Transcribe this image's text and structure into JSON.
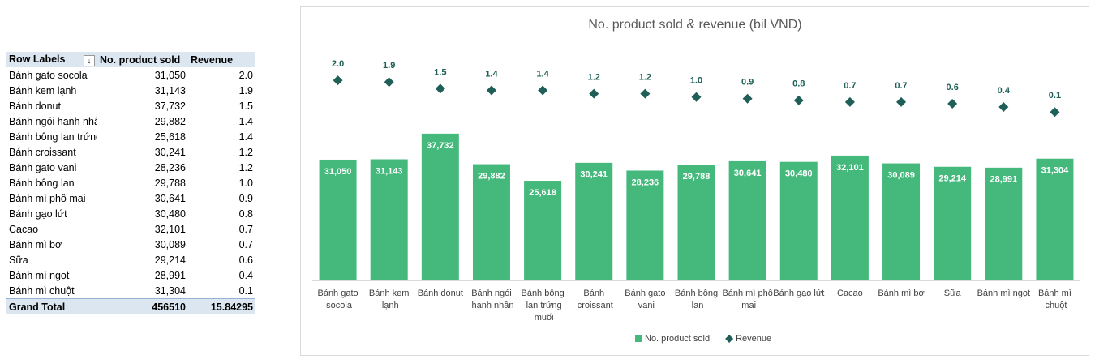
{
  "table": {
    "header": [
      "Row Labels",
      "No. product sold",
      "Revenue"
    ],
    "rows": [
      [
        "Bánh gato socola",
        "31,050",
        "2.0"
      ],
      [
        "Bánh kem lạnh",
        "31,143",
        "1.9"
      ],
      [
        "Bánh donut",
        "37,732",
        "1.5"
      ],
      [
        "Bánh ngói hạnh nhân",
        "29,882",
        "1.4"
      ],
      [
        "Bánh bông lan trứng muối",
        "25,618",
        "1.4"
      ],
      [
        "Bánh croissant",
        "30,241",
        "1.2"
      ],
      [
        "Bánh gato vani",
        "28,236",
        "1.2"
      ],
      [
        "Bánh bông lan",
        "29,788",
        "1.0"
      ],
      [
        "Bánh mì phô mai",
        "30,641",
        "0.9"
      ],
      [
        "Bánh gạo lứt",
        "30,480",
        "0.8"
      ],
      [
        "Cacao",
        "32,101",
        "0.7"
      ],
      [
        "Bánh mì bơ",
        "30,089",
        "0.7"
      ],
      [
        "Sữa",
        "29,214",
        "0.6"
      ],
      [
        "Bánh mì ngọt",
        "28,991",
        "0.4"
      ],
      [
        "Bánh mì chuột",
        "31,304",
        "0.1"
      ]
    ],
    "total": [
      "Grand Total",
      "456510",
      "15.84295"
    ]
  },
  "chart_data": {
    "type": "bar",
    "title": "No. product sold & revenue (bil VND)",
    "categories": [
      "Bánh gato socola",
      "Bánh kem lạnh",
      "Bánh donut",
      "Bánh ngói hạnh nhân",
      "Bánh bông lan trứng muối",
      "Bánh croissant",
      "Bánh gato vani",
      "Bánh bông lan",
      "Bánh mì phô mai",
      "Bánh gạo lứt",
      "Cacao",
      "Bánh mì bơ",
      "Sữa",
      "Bánh mì ngọt",
      "Bánh mì chuột"
    ],
    "series": [
      {
        "name": "No. product sold",
        "type": "bar",
        "color": "#45b97c",
        "values": [
          31050,
          31143,
          37732,
          29882,
          25618,
          30241,
          28236,
          29788,
          30641,
          30480,
          32101,
          30089,
          29214,
          28991,
          31304
        ],
        "value_labels": [
          "31,050",
          "31,143",
          "37,732",
          "29,882",
          "25,618",
          "30,241",
          "28,236",
          "29,788",
          "30,641",
          "30,480",
          "32,101",
          "30,089",
          "29,214",
          "28,991",
          "31,304"
        ]
      },
      {
        "name": "Revenue",
        "type": "scatter",
        "axis": "y2",
        "color": "#1f5f58",
        "values": [
          2.0,
          1.9,
          1.5,
          1.4,
          1.4,
          1.2,
          1.2,
          1.0,
          0.9,
          0.8,
          0.7,
          0.7,
          0.6,
          0.4,
          0.1
        ],
        "value_labels": [
          "2.0",
          "1.9",
          "1.5",
          "1.4",
          "1.4",
          "1.2",
          "1.2",
          "1.0",
          "0.9",
          "0.8",
          "0.7",
          "0.7",
          "0.6",
          "0.4",
          "0.1"
        ]
      }
    ],
    "ylim": [
      0,
      60000
    ],
    "y2lim": [
      -10,
      4
    ],
    "legend": "bottom"
  }
}
